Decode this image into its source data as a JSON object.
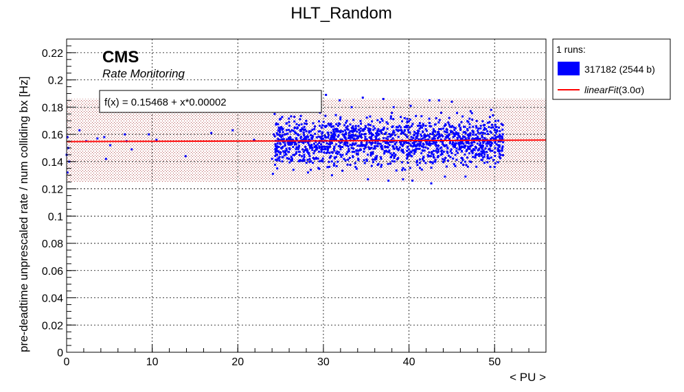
{
  "chart_data": {
    "type": "scatter",
    "title": "HLT_Random",
    "xlabel": "< PU >",
    "ylabel": "pre-deadtime unprescaled rate / num colliding bx [Hz]",
    "xlim": [
      0,
      56
    ],
    "ylim": [
      0,
      0.23
    ],
    "xticks": [
      0,
      10,
      20,
      30,
      40,
      50
    ],
    "xtick_labels": [
      "0",
      "10",
      "20",
      "30",
      "40",
      "50"
    ],
    "yticks": [
      0,
      0.02,
      0.04,
      0.06,
      0.08,
      0.1,
      0.12,
      0.14,
      0.16,
      0.18,
      0.2,
      0.22
    ],
    "ytick_labels": [
      "0",
      "0.02",
      "0.04",
      "0.06",
      "0.08",
      "0.1",
      "0.12",
      "0.14",
      "0.16",
      "0.18",
      "0.2",
      "0.22"
    ],
    "grid": true,
    "legend_position": "outside-right-top",
    "legend_header": "1 runs:",
    "series": [
      {
        "name": "317182 (2544 b)",
        "color": "#0000ff",
        "note_dense_region": {
          "x_range": [
            24,
            51
          ],
          "y_range": [
            0.123,
            0.19
          ]
        },
        "points": [
          [
            0.0,
            0.145
          ],
          [
            0.1,
            0.158
          ],
          [
            0.1,
            0.132
          ],
          [
            0.2,
            0.15
          ],
          [
            0.3,
            0.14
          ],
          [
            1.5,
            0.163
          ],
          [
            2.3,
            0.155
          ],
          [
            3.6,
            0.157
          ],
          [
            4.4,
            0.158
          ],
          [
            4.6,
            0.142
          ],
          [
            5.1,
            0.152
          ],
          [
            6.8,
            0.16
          ],
          [
            7.0,
            0.155
          ],
          [
            7.6,
            0.149
          ],
          [
            9.6,
            0.16
          ],
          [
            10.5,
            0.156
          ],
          [
            13.9,
            0.144
          ],
          [
            16.9,
            0.161
          ],
          [
            21.9,
            0.156
          ],
          [
            19.4,
            0.163
          ],
          [
            24.0,
            0.142
          ],
          [
            24.1,
            0.131
          ],
          [
            24.2,
            0.16
          ],
          [
            24.3,
            0.175
          ],
          [
            24.4,
            0.147
          ],
          [
            24.5,
            0.168
          ],
          [
            24.6,
            0.135
          ],
          [
            24.7,
            0.155
          ],
          [
            24.8,
            0.165
          ],
          [
            24.9,
            0.171
          ],
          [
            30.3,
            0.189
          ],
          [
            31.9,
            0.185
          ],
          [
            34.6,
            0.187
          ],
          [
            37.0,
            0.186
          ],
          [
            42.4,
            0.185
          ],
          [
            43.5,
            0.185
          ],
          [
            47.2,
            0.177
          ],
          [
            49.6,
            0.178
          ],
          [
            49.8,
            0.174
          ],
          [
            45.0,
            0.184
          ],
          [
            35.2,
            0.127
          ],
          [
            37.6,
            0.126
          ],
          [
            42.6,
            0.124
          ],
          [
            40.4,
            0.126
          ],
          [
            44.2,
            0.129
          ],
          [
            46.6,
            0.129
          ],
          [
            50.0,
            0.136
          ],
          [
            50.5,
            0.165
          ],
          [
            50.9,
            0.157
          ],
          [
            31.0,
            0.13
          ],
          [
            28.2,
            0.132
          ],
          [
            26.5,
            0.134
          ],
          [
            29.6,
            0.176
          ],
          [
            33.3,
            0.18
          ],
          [
            38.2,
            0.18
          ],
          [
            40.2,
            0.181
          ],
          [
            25.5,
            0.178
          ],
          [
            26.9,
            0.181
          ],
          [
            28.6,
            0.179
          ],
          [
            39.3,
            0.127
          ]
        ]
      },
      {
        "name": "linearFit(3.0σ)",
        "color": "#ff0000",
        "intercept": 0.15468,
        "slope": 2e-05,
        "sigma_band": [
          0.125,
          0.186
        ]
      }
    ],
    "annotations": {
      "cms": "CMS",
      "subtitle": "Rate Monitoring",
      "fit_formula": "f(x) = 0.15468 + x*0.00002"
    }
  },
  "legend": {
    "header": "1 runs:",
    "items": [
      "317182 (2544 b)",
      "linearFit(3.0σ)"
    ],
    "item_main": "linearFit",
    "item_suffix": "(3.0σ)"
  }
}
